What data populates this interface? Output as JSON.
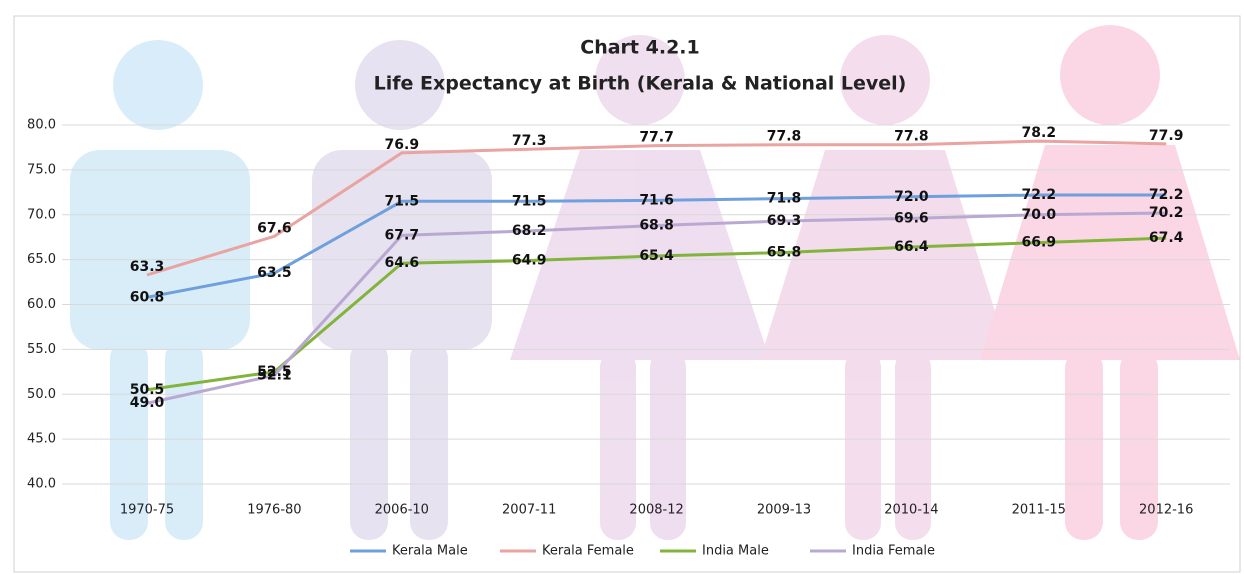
{
  "chart_data": {
    "type": "line",
    "title": "Chart 4.2.1",
    "subtitle": "Life Expectancy at Birth (Kerala & National Level)",
    "categories": [
      "1970-75",
      "1976-80",
      "2006-10",
      "2007-11",
      "2008-12",
      "2009-13",
      "2010-14",
      "2011-15",
      "2012-16"
    ],
    "series": [
      {
        "name": "Kerala Male",
        "color": "#6f9fdc",
        "values": [
          60.8,
          63.5,
          71.5,
          71.5,
          71.6,
          71.8,
          72.0,
          72.2,
          72.2
        ],
        "value_labels": [
          "60.8",
          "63.5",
          "71.5",
          "71.5",
          "71.6",
          "71.8",
          "72.0",
          "72.2",
          "72.2"
        ]
      },
      {
        "name": "Kerala Female",
        "color": "#e9a3a1",
        "values": [
          63.3,
          67.6,
          76.9,
          77.3,
          77.7,
          77.8,
          77.8,
          78.2,
          77.9
        ],
        "value_labels": [
          "63.3",
          "67.6",
          "76.9",
          "77.3",
          "77.7",
          "77.8",
          "77.8",
          "78.2",
          "77.9"
        ]
      },
      {
        "name": "India Male",
        "color": "#82b43c",
        "values": [
          50.5,
          52.5,
          64.6,
          64.9,
          65.4,
          65.8,
          66.4,
          66.9,
          67.4
        ],
        "value_labels": [
          "50.5",
          "52.5",
          "64.6",
          "64.9",
          "65.4",
          "65.8",
          "66.4",
          "66.9",
          "67.4"
        ]
      },
      {
        "name": "India Female",
        "color": "#b9a8d2",
        "values": [
          49.0,
          52.1,
          67.7,
          68.2,
          68.8,
          69.3,
          69.6,
          70.0,
          70.2
        ],
        "value_labels": [
          "49.0",
          "52.1",
          "67.7",
          "68.2",
          "68.8",
          "69.3",
          "69.6",
          "70.0",
          "70.2"
        ]
      }
    ],
    "ylim": [
      40,
      80
    ],
    "yticks": [
      {
        "value": 40,
        "label": "40.0"
      },
      {
        "value": 45,
        "label": "45.0"
      },
      {
        "value": 50,
        "label": "50.0"
      },
      {
        "value": 55,
        "label": "55.0"
      },
      {
        "value": 60,
        "label": "60.0"
      },
      {
        "value": 65,
        "label": "65.0"
      },
      {
        "value": 70,
        "label": "70.0"
      },
      {
        "value": 75,
        "label": "75.0"
      },
      {
        "value": 80,
        "label": "80.0"
      }
    ],
    "grid": true,
    "legend": "bottom"
  }
}
